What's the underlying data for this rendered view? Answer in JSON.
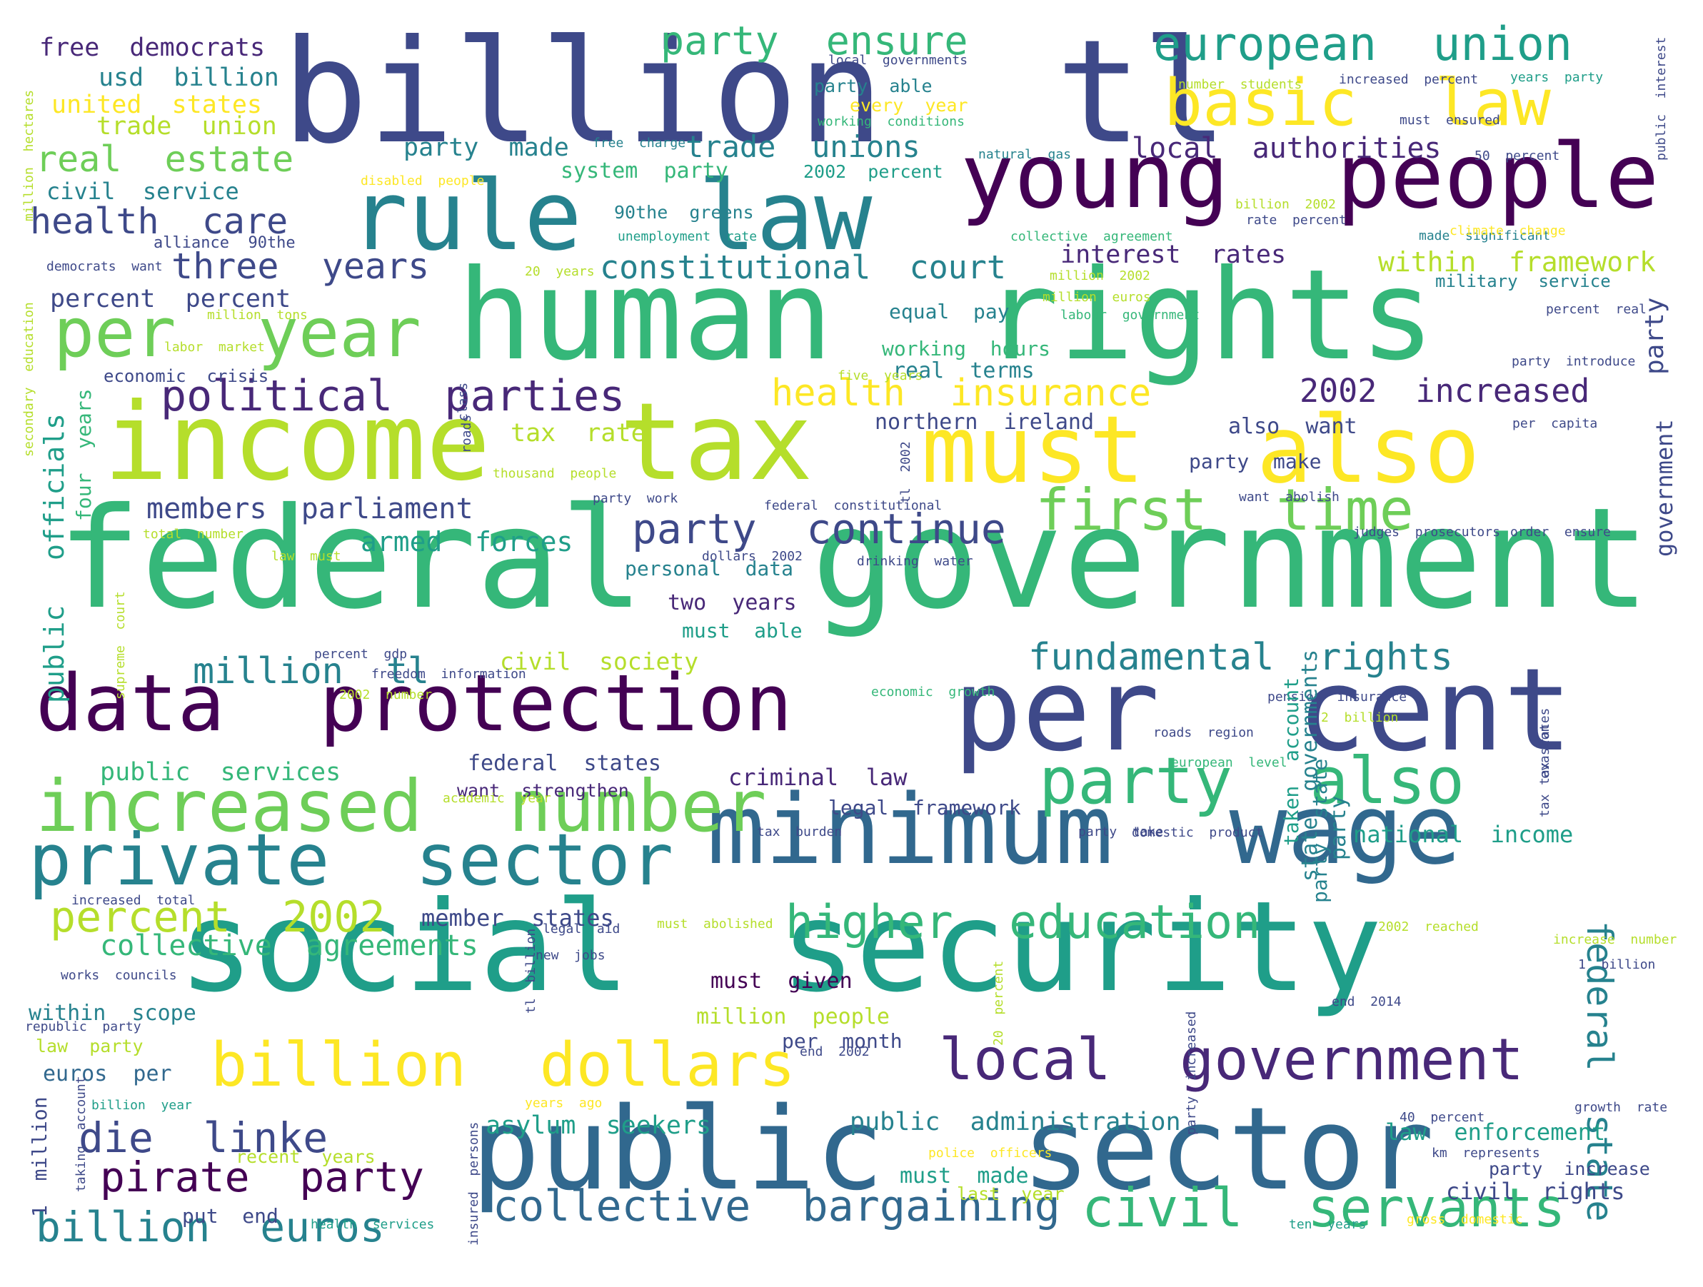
{
  "colors": {
    "background": "#ffffff",
    "palette": [
      "#440154",
      "#482878",
      "#3e4989",
      "#31688e",
      "#26828e",
      "#1f9e89",
      "#35b779",
      "#6ece58",
      "#b5de2b",
      "#fde725"
    ]
  },
  "words": [
    {
      "text": "billion  tl",
      "color": "#3e4989"
    },
    {
      "text": "human  rights",
      "color": "#35b779"
    },
    {
      "text": "federal  government",
      "color": "#35b779"
    },
    {
      "text": "social  security",
      "color": "#1f9e89"
    },
    {
      "text": "public  sector",
      "color": "#31688e"
    },
    {
      "text": "income  tax",
      "color": "#b5de2b"
    },
    {
      "text": "must  also",
      "color": "#fde725"
    },
    {
      "text": "rule  law",
      "color": "#26828e"
    },
    {
      "text": "young  people",
      "color": "#440154"
    },
    {
      "text": "per  cent",
      "color": "#3e4989"
    },
    {
      "text": "minimum  wage",
      "color": "#31688e"
    },
    {
      "text": "data  protection",
      "color": "#440154"
    },
    {
      "text": "private  sector",
      "color": "#26828e"
    },
    {
      "text": "increased  number",
      "color": "#6ece58"
    },
    {
      "text": "per  year",
      "color": "#6ece58"
    },
    {
      "text": "european  union",
      "color": "#1f9e89"
    },
    {
      "text": "basic  law",
      "color": "#fde725"
    },
    {
      "text": "first  time",
      "color": "#6ece58"
    },
    {
      "text": "party  also",
      "color": "#35b779"
    },
    {
      "text": "billion  dollars",
      "color": "#fde725"
    },
    {
      "text": "local  government",
      "color": "#482878"
    },
    {
      "text": "higher  education",
      "color": "#35b779"
    },
    {
      "text": "collective  bargaining",
      "color": "#31688e"
    },
    {
      "text": "civil  servants",
      "color": "#35b779"
    },
    {
      "text": "pirate  party",
      "color": "#440154"
    },
    {
      "text": "billion  euros",
      "color": "#26828e"
    },
    {
      "text": "die  linke",
      "color": "#3e4989"
    },
    {
      "text": "percent  2002",
      "color": "#b5de2b"
    },
    {
      "text": "federal  state",
      "color": "#26828e"
    },
    {
      "text": "fundamental  rights",
      "color": "#26828e"
    },
    {
      "text": "health  insurance",
      "color": "#fde725"
    },
    {
      "text": "political  parties",
      "color": "#482878"
    },
    {
      "text": "party  continue",
      "color": "#3e4989"
    },
    {
      "text": "real  estate",
      "color": "#6ece58"
    },
    {
      "text": "health  care",
      "color": "#3e4989"
    },
    {
      "text": "three  years",
      "color": "#3e4989"
    },
    {
      "text": "constitutional  court",
      "color": "#26828e"
    },
    {
      "text": "party  ensure",
      "color": "#35b779"
    },
    {
      "text": "trade  unions",
      "color": "#26828e"
    },
    {
      "text": "million  tl",
      "color": "#26828e"
    },
    {
      "text": "members  parliament",
      "color": "#3e4989"
    },
    {
      "text": "2002  increased",
      "color": "#482878"
    },
    {
      "text": "collective  agreements",
      "color": "#35b779"
    },
    {
      "text": "public  administration",
      "color": "#26828e"
    },
    {
      "text": "free  democrats",
      "color": "#482878"
    },
    {
      "text": "usd  billion",
      "color": "#26828e"
    },
    {
      "text": "united  states",
      "color": "#fde725"
    },
    {
      "text": "trade  union",
      "color": "#b5de2b"
    },
    {
      "text": "civil  service",
      "color": "#26828e"
    },
    {
      "text": "alliance  90the",
      "color": "#3e4989"
    },
    {
      "text": "percent  percent",
      "color": "#3e4989"
    },
    {
      "text": "party  made",
      "color": "#26828e"
    },
    {
      "text": "local  authorities",
      "color": "#482878"
    },
    {
      "text": "system  party",
      "color": "#35b779"
    },
    {
      "text": "2002  percent",
      "color": "#1f9e89"
    },
    {
      "text": "90the  greens",
      "color": "#26828e"
    },
    {
      "text": "interest  rates",
      "color": "#482878"
    },
    {
      "text": "within  framework",
      "color": "#b5de2b"
    },
    {
      "text": "military  service",
      "color": "#26828e"
    },
    {
      "text": "equal  pay",
      "color": "#26828e"
    },
    {
      "text": "working  hours",
      "color": "#35b779"
    },
    {
      "text": "real  terms",
      "color": "#26828e"
    },
    {
      "text": "northern  ireland",
      "color": "#3e4989"
    },
    {
      "text": "also  want",
      "color": "#3e4989"
    },
    {
      "text": "party  make",
      "color": "#3e4989"
    },
    {
      "text": "tax  rate",
      "color": "#b5de2b"
    },
    {
      "text": "armed  forces",
      "color": "#1f9e89"
    },
    {
      "text": "personal  data",
      "color": "#26828e"
    },
    {
      "text": "two  years",
      "color": "#482878"
    },
    {
      "text": "must  able",
      "color": "#1f9e89"
    },
    {
      "text": "civil  society",
      "color": "#b5de2b"
    },
    {
      "text": "federal  states",
      "color": "#3e4989"
    },
    {
      "text": "want  strengthen",
      "color": "#482878"
    },
    {
      "text": "criminal  law",
      "color": "#482878"
    },
    {
      "text": "legal  framework",
      "color": "#3e4989"
    },
    {
      "text": "public  services",
      "color": "#35b779"
    },
    {
      "text": "member  states",
      "color": "#3e4989"
    },
    {
      "text": "national  income",
      "color": "#1f9e89"
    },
    {
      "text": "must  given",
      "color": "#440154"
    },
    {
      "text": "million  people",
      "color": "#b5de2b"
    },
    {
      "text": "per  month",
      "color": "#3e4989"
    },
    {
      "text": "within  scope",
      "color": "#26828e"
    },
    {
      "text": "law  party",
      "color": "#b5de2b"
    },
    {
      "text": "euros  per",
      "color": "#31688e"
    },
    {
      "text": "asylum  seekers",
      "color": "#1f9e89"
    },
    {
      "text": "law  enforcement",
      "color": "#1f9e89"
    },
    {
      "text": "civil  rights",
      "color": "#3e4989"
    },
    {
      "text": "party  increase",
      "color": "#3e4989"
    },
    {
      "text": "must  made",
      "color": "#1f9e89"
    },
    {
      "text": "last  year",
      "color": "#b5de2b"
    },
    {
      "text": "recent  years",
      "color": "#b5de2b"
    },
    {
      "text": "put  end",
      "color": "#3e4989"
    },
    {
      "text": "every  year",
      "color": "#fde725"
    },
    {
      "text": "party  able",
      "color": "#26828e"
    },
    {
      "text": "local  governments",
      "color": "#3e4989"
    },
    {
      "text": "working  conditions",
      "color": "#35b779"
    },
    {
      "text": "free  charge",
      "color": "#26828e"
    },
    {
      "text": "natural  gas",
      "color": "#26828e"
    },
    {
      "text": "number  students",
      "color": "#b5de2b"
    },
    {
      "text": "increased  percent",
      "color": "#3e4989"
    },
    {
      "text": "years  party",
      "color": "#1f9e89"
    },
    {
      "text": "must  ensured",
      "color": "#3e4989"
    },
    {
      "text": "50  percent",
      "color": "#3e4989"
    },
    {
      "text": "disabled  people",
      "color": "#fde725"
    },
    {
      "text": "billion  2002",
      "color": "#b5de2b"
    },
    {
      "text": "rate  percent",
      "color": "#3e4989"
    },
    {
      "text": "unemployment  rate",
      "color": "#1f9e89"
    },
    {
      "text": "collective  agreement",
      "color": "#35b779"
    },
    {
      "text": "made  significant",
      "color": "#26828e"
    },
    {
      "text": "climate  change",
      "color": "#fde725"
    },
    {
      "text": "democrats  want",
      "color": "#3e4989"
    },
    {
      "text": "20  years",
      "color": "#b5de2b"
    },
    {
      "text": "million  2002",
      "color": "#b5de2b"
    },
    {
      "text": "million  euros",
      "color": "#b5de2b"
    },
    {
      "text": "labour  government",
      "color": "#35b779"
    },
    {
      "text": "million  tons",
      "color": "#b5de2b"
    },
    {
      "text": "percent  real",
      "color": "#3e4989"
    },
    {
      "text": "labor  market",
      "color": "#b5de2b"
    },
    {
      "text": "economic  crisis",
      "color": "#3e4989"
    },
    {
      "text": "five  years",
      "color": "#b5de2b"
    },
    {
      "text": "party  introduce",
      "color": "#3e4989"
    },
    {
      "text": "per  capita",
      "color": "#3e4989"
    },
    {
      "text": "thousand  people",
      "color": "#b5de2b"
    },
    {
      "text": "want  abolish",
      "color": "#3e4989"
    },
    {
      "text": "party  work",
      "color": "#3e4989"
    },
    {
      "text": "federal  constitutional",
      "color": "#3e4989"
    },
    {
      "text": "total  number",
      "color": "#b5de2b"
    },
    {
      "text": "order  ensure",
      "color": "#3e4989"
    },
    {
      "text": "drinking  water",
      "color": "#3e4989"
    },
    {
      "text": "judges  prosecutors",
      "color": "#3e4989"
    },
    {
      "text": "law  must",
      "color": "#b5de2b"
    },
    {
      "text": "dollars  2002",
      "color": "#3e4989"
    },
    {
      "text": "percent  gdp",
      "color": "#3e4989"
    },
    {
      "text": "freedom  information",
      "color": "#3e4989"
    },
    {
      "text": "2002  number",
      "color": "#b5de2b"
    },
    {
      "text": "economic  growth",
      "color": "#35b779"
    },
    {
      "text": "pension  insurance",
      "color": "#3e4989"
    },
    {
      "text": "2  billion",
      "color": "#b5de2b"
    },
    {
      "text": "roads  region",
      "color": "#3e4989"
    },
    {
      "text": "european  level",
      "color": "#35b779"
    },
    {
      "text": "academic  year",
      "color": "#b5de2b"
    },
    {
      "text": "tax  burden",
      "color": "#3e4989"
    },
    {
      "text": "party  take",
      "color": "#3e4989"
    },
    {
      "text": "domestic  product",
      "color": "#3e4989"
    },
    {
      "text": "increased  total",
      "color": "#3e4989"
    },
    {
      "text": "must  abolished",
      "color": "#b5de2b"
    },
    {
      "text": "legal  aid",
      "color": "#3e4989"
    },
    {
      "text": "new  jobs",
      "color": "#3e4989"
    },
    {
      "text": "2002  reached",
      "color": "#b5de2b"
    },
    {
      "text": "increase  number",
      "color": "#b5de2b"
    },
    {
      "text": "works  councils",
      "color": "#3e4989"
    },
    {
      "text": "1  billion",
      "color": "#3e4989"
    },
    {
      "text": "end  2014",
      "color": "#3e4989"
    },
    {
      "text": "republic  party",
      "color": "#3e4989"
    },
    {
      "text": "end  2002",
      "color": "#3e4989"
    },
    {
      "text": "billion  year",
      "color": "#1f9e89"
    },
    {
      "text": "years  ago",
      "color": "#fde725"
    },
    {
      "text": "growth  rate",
      "color": "#3e4989"
    },
    {
      "text": "40  percent",
      "color": "#3e4989"
    },
    {
      "text": "police  officers",
      "color": "#fde725"
    },
    {
      "text": "km  represents",
      "color": "#3e4989"
    },
    {
      "text": "gross  domestic",
      "color": "#fde725"
    },
    {
      "text": "health  services",
      "color": "#1f9e89"
    },
    {
      "text": "ten  years",
      "color": "#1f9e89"
    },
    {
      "text": "million  hectares",
      "color": "#b5de2b"
    },
    {
      "text": "secondary  education",
      "color": "#b5de2b"
    },
    {
      "text": "four  years",
      "color": "#35b779"
    },
    {
      "text": "officials",
      "color": "#1f9e89"
    },
    {
      "text": "public",
      "color": "#1f9e89"
    },
    {
      "text": "supreme  court",
      "color": "#b5de2b"
    },
    {
      "text": "party",
      "color": "#3e4989"
    },
    {
      "text": "government",
      "color": "#3e4989"
    },
    {
      "text": "public  interest",
      "color": "#3e4989"
    },
    {
      "text": "class",
      "color": "#3e4989"
    },
    {
      "text": "roads",
      "color": "#3e4989"
    },
    {
      "text": "tl  2002",
      "color": "#3e4989"
    },
    {
      "text": "taken  account",
      "color": "#1f9e89"
    },
    {
      "text": "state  governments",
      "color": "#26828e"
    },
    {
      "text": "party  state",
      "color": "#26828e"
    },
    {
      "text": "party",
      "color": "#26828e"
    },
    {
      "text": "tl  billion",
      "color": "#3e4989"
    },
    {
      "text": "20  percent",
      "color": "#b5de2b"
    },
    {
      "text": "party  increased",
      "color": "#3e4989"
    },
    {
      "text": "tax  rates",
      "color": "#3e4989"
    },
    {
      "text": "tax  evasion",
      "color": "#3e4989"
    },
    {
      "text": "1  million",
      "color": "#3e4989"
    },
    {
      "text": "taking  account",
      "color": "#3e4989"
    },
    {
      "text": "insured  persons",
      "color": "#3e4989"
    }
  ]
}
